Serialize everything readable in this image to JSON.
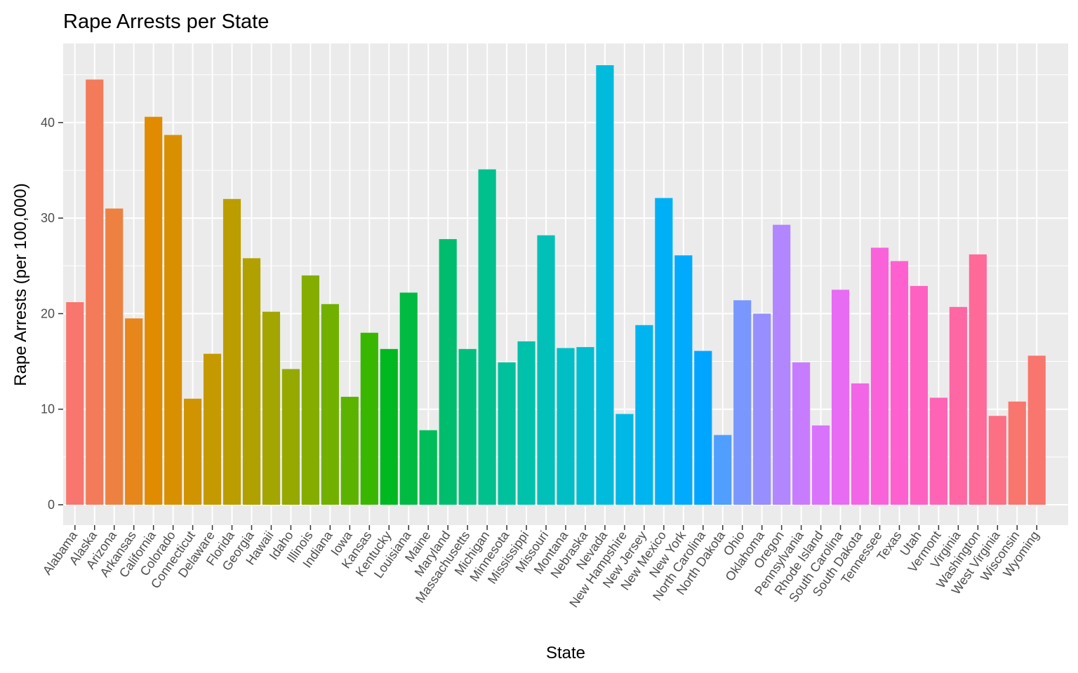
{
  "chart_data": {
    "type": "bar",
    "title": "Rape Arrests per State",
    "xlabel": "State",
    "ylabel": "Rape Arrests (per 100,000)",
    "ylim": [
      0,
      47.8
    ],
    "yticks": [
      "0",
      "10",
      "20",
      "30",
      "40"
    ],
    "ytick_values": [
      0,
      10,
      20,
      30,
      40
    ],
    "grid": true,
    "legend": "none",
    "categories": [
      "Alabama",
      "Alaska",
      "Arizona",
      "Arkansas",
      "California",
      "Colorado",
      "Connecticut",
      "Delaware",
      "Florida",
      "Georgia",
      "Hawaii",
      "Idaho",
      "Illinois",
      "Indiana",
      "Iowa",
      "Kansas",
      "Kentucky",
      "Louisiana",
      "Maine",
      "Maryland",
      "Massachusetts",
      "Michigan",
      "Minnesota",
      "Mississippi",
      "Missouri",
      "Montana",
      "Nebraska",
      "Nevada",
      "New Hampshire",
      "New Jersey",
      "New Mexico",
      "New York",
      "North Carolina",
      "North Dakota",
      "Ohio",
      "Oklahoma",
      "Oregon",
      "Pennsylvania",
      "Rhode Island",
      "South Carolina",
      "South Dakota",
      "Tennessee",
      "Texas",
      "Utah",
      "Vermont",
      "Virginia",
      "Washington",
      "West Virginia",
      "Wisconsin",
      "Wyoming"
    ],
    "values": [
      21.2,
      44.5,
      31.0,
      19.5,
      40.6,
      38.7,
      11.1,
      15.8,
      32.0,
      25.8,
      20.2,
      14.2,
      24.0,
      21.0,
      11.3,
      18.0,
      16.3,
      22.2,
      7.8,
      27.8,
      16.3,
      35.1,
      14.9,
      17.1,
      28.2,
      16.4,
      16.5,
      46.0,
      9.5,
      18.8,
      32.1,
      26.1,
      16.1,
      7.3,
      21.4,
      20.0,
      29.3,
      14.9,
      8.3,
      22.5,
      12.7,
      26.9,
      25.5,
      22.9,
      11.2,
      20.7,
      26.2,
      9.3,
      10.8,
      15.6
    ],
    "colors": [
      "#F8766D",
      "#F37B59",
      "#ED8141",
      "#E7861B",
      "#E08B00",
      "#D89000",
      "#CF9400",
      "#C59900",
      "#BB9D00",
      "#B0A100",
      "#A3A500",
      "#95A900",
      "#85AD00",
      "#72B000",
      "#5BB300",
      "#39B600",
      "#00B81F",
      "#00BA42",
      "#00BC59",
      "#00BD6D",
      "#00BF7D",
      "#00C08D",
      "#00C19C",
      "#00C1AA",
      "#00C0B8",
      "#00BFC4",
      "#00BDD0",
      "#00BBDC",
      "#00B8E5",
      "#00B4EF",
      "#00B0F6",
      "#00ABFD",
      "#00A5FF",
      "#509EFF",
      "#7997FF",
      "#978EFF",
      "#B186FE",
      "#C77CFF",
      "#D973FC",
      "#E76BF3",
      "#F265E7",
      "#FA62DA",
      "#FE61CF",
      "#FF61C3",
      "#FF63B6",
      "#FF67A4",
      "#FF6A98",
      "#FD6F85",
      "#F8766D",
      "#F8766D"
    ]
  }
}
